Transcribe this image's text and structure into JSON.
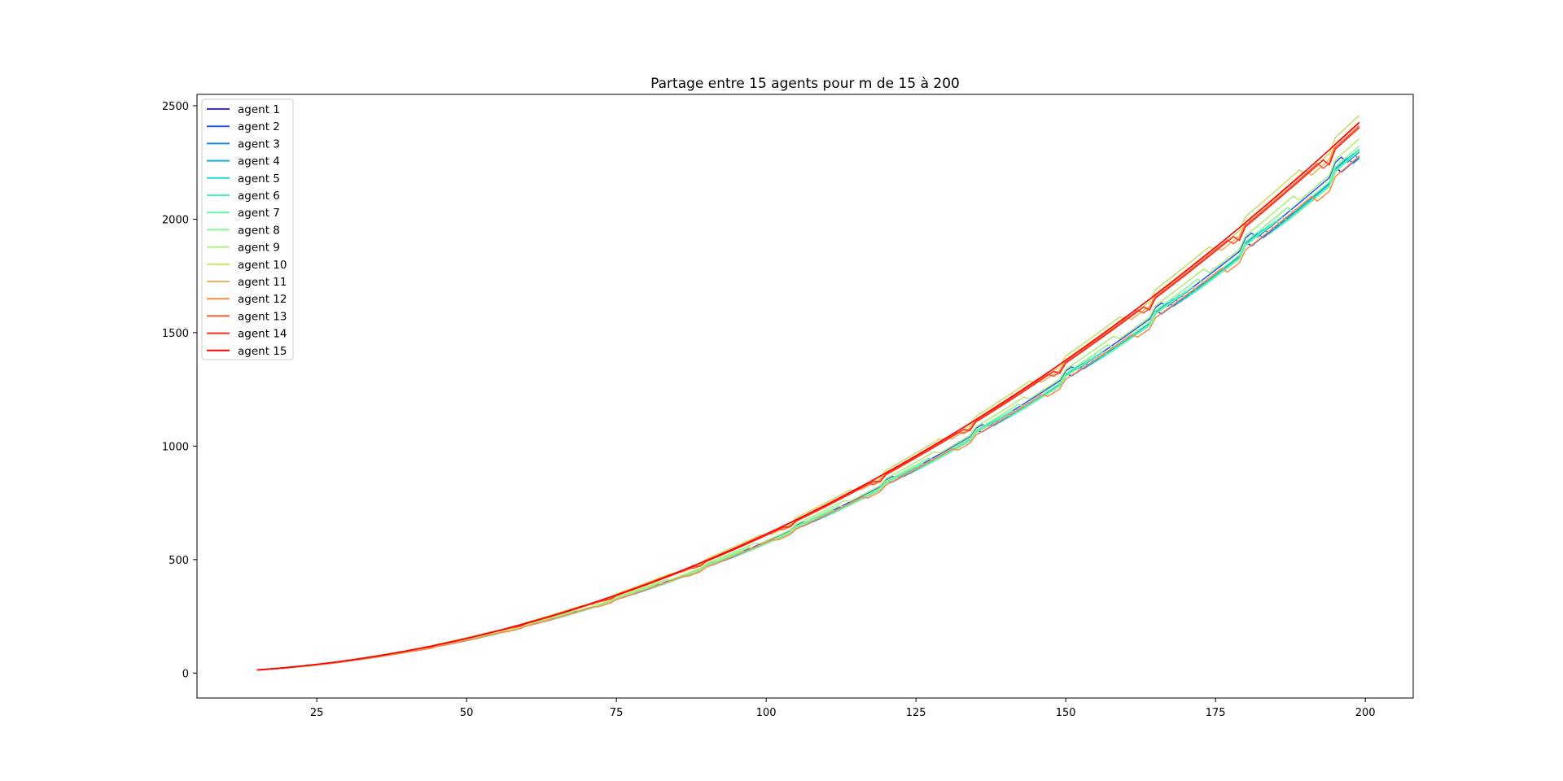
{
  "chart_data": {
    "type": "line",
    "title": "Partage entre 15 agents pour m de 15 à 200",
    "xlabel": "",
    "ylabel": "",
    "xlim": [
      5,
      208
    ],
    "ylim": [
      -110,
      2550
    ],
    "x_ticks": [
      25,
      50,
      75,
      100,
      125,
      150,
      175,
      200
    ],
    "y_ticks": [
      0,
      500,
      1000,
      1500,
      2000,
      2500
    ],
    "x_tick_labels": [
      "25",
      "50",
      "75",
      "100",
      "125",
      "150",
      "175",
      "200"
    ],
    "y_tick_labels": [
      "0",
      "500",
      "1000",
      "1500",
      "2000",
      "2500"
    ],
    "grid": false,
    "legend_position": "upper-left",
    "x_range_points": [
      15,
      199
    ],
    "series": [
      {
        "name": "agent 1",
        "color": "#3b2cf5",
        "end_value": 2310
      },
      {
        "name": "agent 2",
        "color": "#2a5bf1",
        "end_value": 2330
      },
      {
        "name": "agent 3",
        "color": "#1a8be0",
        "end_value": 2300
      },
      {
        "name": "agent 4",
        "color": "#10b3de",
        "end_value": 2295
      },
      {
        "name": "agent 5",
        "color": "#26d5d3",
        "end_value": 2290
      },
      {
        "name": "agent 6",
        "color": "#44eec0",
        "end_value": 2285
      },
      {
        "name": "agent 7",
        "color": "#66f6aa",
        "end_value": 2280
      },
      {
        "name": "agent 8",
        "color": "#8af791",
        "end_value": 2300
      },
      {
        "name": "agent 9",
        "color": "#b0ee7d",
        "end_value": 2330
      },
      {
        "name": "agent 10",
        "color": "#d1d96b",
        "end_value": 2430
      },
      {
        "name": "agent 11",
        "color": "#f3b25c",
        "end_value": 2400
      },
      {
        "name": "agent 12",
        "color": "#fe8c49",
        "end_value": 2250
      },
      {
        "name": "agent 13",
        "color": "#fe5c33",
        "end_value": 2380
      },
      {
        "name": "agent 14",
        "color": "#fe2e1c",
        "end_value": 2370
      },
      {
        "name": "agent 15",
        "color": "#ff0000",
        "end_value": 2390
      }
    ]
  }
}
